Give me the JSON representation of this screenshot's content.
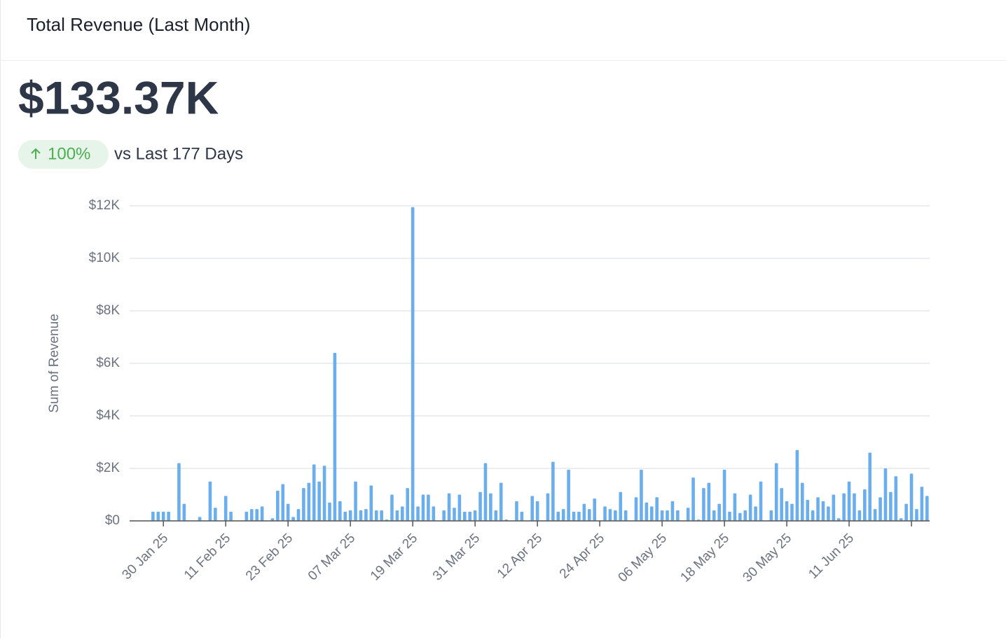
{
  "header": {
    "title": "Total Revenue (Last Month)"
  },
  "summary": {
    "total": "$133.37K",
    "change": "100%",
    "comparison": "vs Last 177 Days"
  },
  "chart_data": {
    "type": "bar",
    "ylabel": "Sum of Revenue",
    "color": "#6aaeee",
    "grid": true,
    "ylim": [
      0,
      12000
    ],
    "yticks": [
      {
        "value": 0,
        "label": "$0"
      },
      {
        "value": 2000,
        "label": "$2K"
      },
      {
        "value": 4000,
        "label": "$4K"
      },
      {
        "value": 6000,
        "label": "$6K"
      },
      {
        "value": 8000,
        "label": "$8K"
      },
      {
        "value": 10000,
        "label": "$10K"
      },
      {
        "value": 12000,
        "label": "$12K"
      }
    ],
    "categories": [
      null,
      null,
      null,
      null,
      null,
      null,
      "30 Jan 25",
      null,
      null,
      null,
      null,
      null,
      null,
      null,
      null,
      null,
      null,
      null,
      "11 Feb 25",
      null,
      null,
      null,
      null,
      null,
      null,
      null,
      null,
      null,
      null,
      null,
      "23 Feb 25",
      null,
      null,
      null,
      null,
      null,
      null,
      null,
      null,
      null,
      null,
      null,
      "07 Mar 25",
      null,
      null,
      null,
      null,
      null,
      null,
      null,
      null,
      null,
      null,
      null,
      "19 Mar 25",
      null,
      null,
      null,
      null,
      null,
      null,
      null,
      null,
      null,
      null,
      null,
      "31 Mar 25",
      null,
      null,
      null,
      null,
      null,
      null,
      null,
      null,
      null,
      null,
      null,
      "12 Apr 25",
      null,
      null,
      null,
      null,
      null,
      null,
      null,
      null,
      null,
      null,
      null,
      "24 Apr 25",
      null,
      null,
      null,
      null,
      null,
      null,
      null,
      null,
      null,
      null,
      null,
      "06 May 25",
      null,
      null,
      null,
      null,
      null,
      null,
      null,
      null,
      null,
      null,
      null,
      "18 May 25",
      null,
      null,
      null,
      null,
      null,
      null,
      null,
      null,
      null,
      null,
      null,
      "30 May 25",
      null,
      null,
      null,
      null,
      null,
      null,
      null,
      null,
      null,
      null,
      null,
      "11 Jun 25",
      null,
      null,
      null,
      null,
      null,
      null,
      null,
      null,
      null,
      null,
      null,
      null,
      null,
      null,
      null
    ],
    "values": [
      0,
      0,
      0,
      0,
      350,
      350,
      350,
      350,
      0,
      2200,
      650,
      0,
      0,
      150,
      0,
      1500,
      500,
      0,
      950,
      350,
      0,
      0,
      350,
      450,
      450,
      550,
      0,
      100,
      1150,
      1400,
      650,
      150,
      450,
      1250,
      1450,
      2150,
      1500,
      2100,
      700,
      6400,
      750,
      350,
      400,
      1500,
      400,
      450,
      1350,
      400,
      400,
      50,
      1000,
      400,
      550,
      1250,
      11950,
      550,
      1000,
      1000,
      550,
      0,
      400,
      1050,
      500,
      1000,
      350,
      350,
      400,
      1100,
      2200,
      1050,
      400,
      1450,
      50,
      0,
      750,
      350,
      0,
      950,
      750,
      0,
      1050,
      2250,
      350,
      450,
      1950,
      350,
      350,
      650,
      450,
      850,
      0,
      550,
      450,
      400,
      1100,
      400,
      0,
      900,
      1950,
      700,
      550,
      900,
      400,
      400,
      750,
      400,
      0,
      500,
      1650,
      50,
      1250,
      1450,
      400,
      650,
      1950,
      350,
      1050,
      300,
      400,
      1000,
      550,
      1500,
      0,
      400,
      2200,
      1250,
      750,
      650,
      2700,
      1450,
      800,
      400,
      900,
      750,
      550,
      1000,
      100,
      1050,
      1500,
      1050,
      400,
      1200,
      2600,
      450,
      900,
      2000,
      1100,
      1700,
      100,
      650,
      1800,
      450,
      1300,
      950
    ]
  }
}
